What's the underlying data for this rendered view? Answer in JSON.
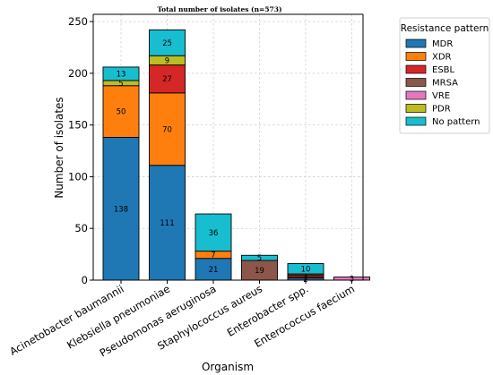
{
  "chart_data": {
    "type": "bar",
    "stacked": true,
    "title": "Total number of isolates (n=573)",
    "xlabel": "Organism",
    "ylabel": "Number of isolates",
    "ylim": [
      0,
      250
    ],
    "yticks": [
      0,
      50,
      100,
      150,
      200,
      250
    ],
    "grid": true,
    "legend_title": "Resistance pattern",
    "legend_position": "top-right outside",
    "categories": [
      "Acinetobacter baumannii",
      "Klebsiella pneumoniae",
      "Pseudomonas aeruginosa",
      "Staphylococcus aureus",
      "Enterobacter spp.",
      "Enterococcus faecium"
    ],
    "series": [
      {
        "name": "MDR",
        "color": "#1f77b4",
        "values": [
          138,
          111,
          21,
          0,
          2,
          0
        ]
      },
      {
        "name": "XDR",
        "color": "#ff7f0e",
        "values": [
          50,
          70,
          7,
          0,
          1,
          0
        ]
      },
      {
        "name": "ESBL",
        "color": "#d62728",
        "values": [
          0,
          27,
          0,
          0,
          2,
          0
        ]
      },
      {
        "name": "MRSA",
        "color": "#8c564b",
        "values": [
          0,
          0,
          0,
          19,
          0,
          0
        ]
      },
      {
        "name": "VRE",
        "color": "#e377c2",
        "values": [
          0,
          0,
          0,
          0,
          0,
          3
        ]
      },
      {
        "name": "PDR",
        "color": "#bcbd22",
        "values": [
          5,
          9,
          0,
          0,
          1,
          0
        ]
      },
      {
        "name": "No pattern",
        "color": "#17becf",
        "values": [
          13,
          25,
          36,
          5,
          10,
          0
        ]
      }
    ],
    "data_labels": [
      [
        "138",
        "50",
        "",
        "",
        "",
        "5",
        "13"
      ],
      [
        "111",
        "70",
        "27",
        "",
        "",
        "9",
        "25"
      ],
      [
        "21",
        "7",
        "",
        "",
        "",
        "",
        "36"
      ],
      [
        "",
        "",
        "",
        "19",
        "",
        "",
        "5"
      ],
      [
        "2",
        "1",
        "2",
        "",
        "",
        "1",
        "10"
      ],
      [
        "",
        "",
        "",
        "",
        "3",
        "",
        ""
      ]
    ]
  }
}
